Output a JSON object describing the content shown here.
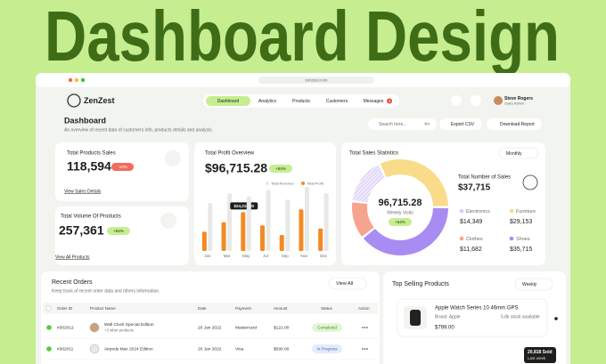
{
  "hero": {
    "title": "Dashboard Design"
  },
  "browser": {
    "url": "zenzest.com"
  },
  "header": {
    "logo": "ZenZest",
    "nav": [
      "Dashboard",
      "Analytics",
      "Products",
      "Customers",
      "Messages"
    ],
    "messages_badge": "8",
    "user": {
      "name": "Steve Rogers",
      "role": "Sales Admin"
    }
  },
  "page": {
    "title": "Dashboard",
    "subtitle": "An overview of recent data of customers info, products details and analysis.",
    "search": "Search here...",
    "shortcut": "⌘K",
    "export": "Export CSV",
    "download": "Download Report"
  },
  "cards": [
    {
      "title": "Total Products Sales",
      "value": "118,594",
      "change": "-10%",
      "link": "View Sales Details"
    },
    {
      "title": "Total Volume Of Products",
      "value": "257,361",
      "change": "+54%",
      "link": "View All Products"
    }
  ],
  "profit": {
    "title": "Total Profit Overview",
    "value": "$96,715.28",
    "change": "+54%",
    "chart": {
      "type": "bar",
      "categories": [
        "Jan",
        "Mar",
        "May",
        "Jul",
        "Sep",
        "Nov",
        "Dec"
      ],
      "series": [
        {
          "name": "Total Revenue",
          "color": "#e8e9e6",
          "values": [
            30000,
            36000,
            34000,
            38000,
            32000,
            40000,
            36000
          ]
        },
        {
          "name": "Total Profit",
          "color": "#f28a26",
          "values": [
            12000,
            18000,
            24218,
            16000,
            10000,
            26000,
            14000
          ],
          "value_labels": [
            null,
            null,
            "$24,218.00",
            null,
            null,
            null,
            null
          ]
        }
      ]
    }
  },
  "sales": {
    "title": "Total Sales Statistics",
    "period": "Monthly",
    "center_value": "96,715.28",
    "center_label": "Weekly Visits",
    "change": "+54%",
    "total_label": "Total Number of Sales",
    "total": "$37,715",
    "chart": {
      "type": "pie",
      "categories": [
        "Furniture",
        "Shoes",
        "Clothes",
        "Electronics"
      ],
      "values": [
        29153,
        35715,
        11682,
        14349
      ],
      "value_labels": [
        "$29,153",
        "$35,715",
        "$11,682",
        "$14,349"
      ],
      "colors": [
        "#f8dc8a",
        "#a98cf2",
        "#f7a48e",
        "#d9cdf6"
      ]
    }
  },
  "orders": {
    "title": "Recent Orders",
    "subtitle": "Keep track of recent order data and others information.",
    "view_all": "View All",
    "columns": [
      "Order ID",
      "Product Name",
      "Date",
      "Payment",
      "Amount",
      "Status",
      "Action"
    ],
    "rows": [
      {
        "id": "#302012",
        "product": "Wall Clock Special Edition",
        "extra": "+3 other products",
        "date": "20 Jan 2022",
        "payment": "Mastercard",
        "amount": "$121.00",
        "status": "Completed"
      },
      {
        "id": "#302011",
        "product": "Airpods Max 2024 Edition",
        "date": "20 Jan 2022",
        "payment": "Visa",
        "amount": "$590.00",
        "status": "In Progress"
      }
    ]
  },
  "top": {
    "title": "Top Selling Products",
    "period": "Weekly",
    "product": {
      "name": "Apple Watch Series 10 46mm GPS",
      "brand": "Brand: Apple",
      "stock": "5.8k stock available",
      "price": "$799.00"
    },
    "tooltip": {
      "value": "20,818 Sold",
      "label": "Last week"
    }
  }
}
